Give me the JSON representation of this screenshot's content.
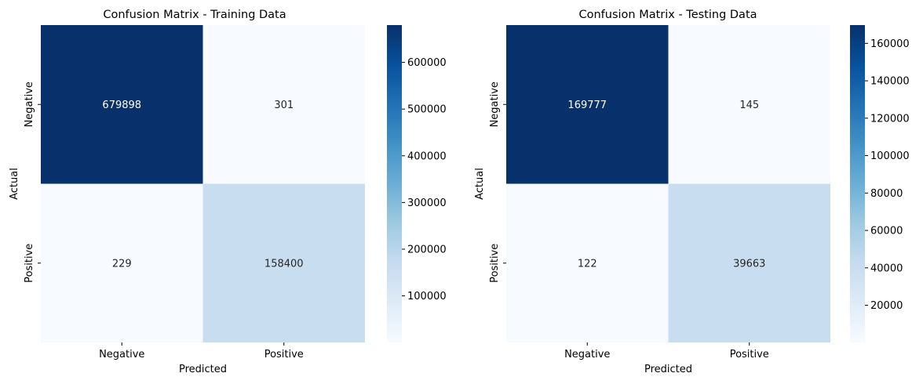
{
  "chart_data": [
    {
      "type": "heatmap",
      "title": "Confusion Matrix - Training Data",
      "xlabel": "Predicted",
      "ylabel": "Actual",
      "x_categories": [
        "Negative",
        "Positive"
      ],
      "y_categories": [
        "Negative",
        "Positive"
      ],
      "values": [
        [
          679898,
          301
        ],
        [
          229,
          158400
        ]
      ],
      "value_labels": [
        [
          "679898",
          "301"
        ],
        [
          "229",
          "158400"
        ]
      ],
      "colorbar": {
        "ticks": [
          100000,
          200000,
          300000,
          400000,
          500000,
          600000
        ],
        "tick_labels": [
          "100000",
          "200000",
          "300000",
          "400000",
          "500000",
          "600000"
        ],
        "range": [
          229,
          679898
        ]
      },
      "colormap": "Blues"
    },
    {
      "type": "heatmap",
      "title": "Confusion Matrix - Testing Data",
      "xlabel": "Predicted",
      "ylabel": "Actual",
      "x_categories": [
        "Negative",
        "Positive"
      ],
      "y_categories": [
        "Negative",
        "Positive"
      ],
      "values": [
        [
          169777,
          145
        ],
        [
          122,
          39663
        ]
      ],
      "value_labels": [
        [
          "169777",
          "145"
        ],
        [
          "122",
          "39663"
        ]
      ],
      "colorbar": {
        "ticks": [
          20000,
          40000,
          60000,
          80000,
          100000,
          120000,
          140000,
          160000
        ],
        "tick_labels": [
          "20000",
          "40000",
          "60000",
          "80000",
          "100000",
          "120000",
          "140000",
          "160000"
        ],
        "range": [
          122,
          169777
        ]
      },
      "colormap": "Blues"
    }
  ]
}
